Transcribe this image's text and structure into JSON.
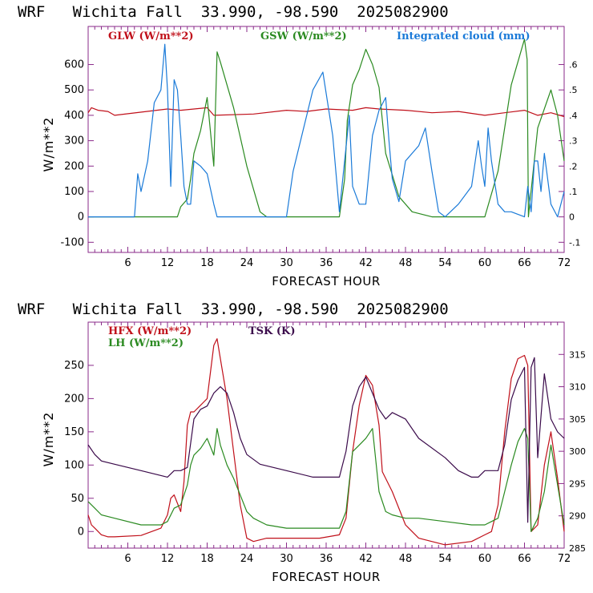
{
  "colors": {
    "glw": "#c0101a",
    "gsw": "#2a8a20",
    "cloud": "#1a7ad8",
    "hfx": "#c0101a",
    "lh": "#2a8a20",
    "tsk": "#3a0a4a",
    "frame": "#8a2a8a"
  },
  "chart_data": [
    {
      "type": "line",
      "title": "WRF   Wichita Fall  33.990, -98.590  2025082900",
      "xlabel": "FORECAST HOUR",
      "ylabel": "W/m**2",
      "xlim": [
        0,
        72
      ],
      "ylim": [
        -140,
        750
      ],
      "xticks": [
        6,
        12,
        18,
        24,
        30,
        36,
        42,
        48,
        54,
        60,
        66,
        72
      ],
      "yticks": [
        -100,
        0,
        100,
        200,
        300,
        400,
        500,
        600
      ],
      "right_axis": {
        "lim": [
          -0.14,
          0.75
        ],
        "ticks": [
          -0.1,
          0,
          0.1,
          0.2,
          0.3,
          0.4,
          0.5,
          0.6
        ],
        "tick_labels": [
          "-.1",
          "0",
          ".1",
          ".2",
          ".3",
          ".4",
          ".5",
          ".6"
        ]
      },
      "series": [
        {
          "name": "GLW (W/m**2)",
          "axis": "left",
          "x": [
            0,
            0.5,
            1.5,
            3,
            4,
            12,
            14,
            18,
            19,
            25,
            30,
            33,
            36,
            40,
            42,
            44,
            48,
            52,
            56,
            60,
            63,
            66,
            68,
            70,
            72
          ],
          "y": [
            410,
            430,
            420,
            415,
            400,
            425,
            420,
            430,
            400,
            405,
            420,
            415,
            425,
            420,
            430,
            425,
            420,
            410,
            415,
            400,
            410,
            420,
            400,
            410,
            395
          ]
        },
        {
          "name": "GSW (W/m**2)",
          "axis": "left",
          "x": [
            0,
            13.5,
            14,
            15,
            15.5,
            16,
            17,
            18,
            19,
            19.5,
            20,
            22,
            24,
            26,
            27,
            30,
            33,
            36,
            38,
            38.8,
            39.2,
            40,
            41,
            42,
            43,
            44,
            45,
            47,
            49,
            52,
            56,
            60,
            62,
            64,
            66,
            66.4,
            66.6,
            68,
            70,
            71,
            72
          ],
          "y": [
            0,
            0,
            40,
            70,
            150,
            250,
            340,
            470,
            200,
            650,
            610,
            430,
            200,
            20,
            0,
            0,
            0,
            0,
            0,
            150,
            380,
            520,
            580,
            660,
            600,
            510,
            250,
            80,
            20,
            0,
            0,
            0,
            180,
            520,
            700,
            620,
            0,
            350,
            500,
            400,
            220
          ]
        },
        {
          "name": "Integrated cloud (mm)",
          "axis": "right",
          "x": [
            0,
            7,
            7.5,
            8,
            9,
            10,
            11,
            11.6,
            12,
            12.5,
            13,
            13.5,
            14,
            14.5,
            15,
            15.5,
            16,
            17,
            18,
            19,
            19.5,
            30,
            31,
            34,
            35.5,
            37,
            38,
            39.5,
            40,
            41,
            42,
            43,
            44,
            45,
            45.5,
            46,
            47,
            48,
            50,
            51,
            52,
            53,
            54,
            56,
            58,
            59,
            59.5,
            60,
            60.5,
            61,
            62,
            63,
            64,
            66,
            66.5,
            67,
            67.5,
            68,
            68.5,
            69,
            70,
            71,
            72
          ],
          "y": [
            0,
            0,
            0.17,
            0.1,
            0.22,
            0.45,
            0.5,
            0.68,
            0.5,
            0.12,
            0.54,
            0.5,
            0.32,
            0.12,
            0.05,
            0.05,
            0.22,
            0.2,
            0.17,
            0.05,
            0,
            0,
            0.18,
            0.5,
            0.57,
            0.32,
            0.02,
            0.4,
            0.12,
            0.05,
            0.05,
            0.32,
            0.42,
            0.47,
            0.3,
            0.15,
            0.06,
            0.22,
            0.28,
            0.35,
            0.18,
            0.02,
            0,
            0.05,
            0.12,
            0.3,
            0.2,
            0.12,
            0.35,
            0.22,
            0.05,
            0.02,
            0.02,
            0,
            0.12,
            0.02,
            0.22,
            0.22,
            0.1,
            0.25,
            0.05,
            0,
            0.1
          ]
        }
      ]
    },
    {
      "type": "line",
      "title": "WRF   Wichita Fall  33.990, -98.590  2025082900",
      "xlabel": "FORECAST HOUR",
      "ylabel": "W/m**2",
      "xlim": [
        0,
        72
      ],
      "ylim": [
        -25,
        315
      ],
      "xticks": [
        6,
        12,
        18,
        24,
        30,
        36,
        42,
        48,
        54,
        60,
        66,
        72
      ],
      "yticks": [
        0,
        50,
        100,
        150,
        200,
        250
      ],
      "right_axis": {
        "lim": [
          285,
          320
        ],
        "ticks": [
          285,
          290,
          295,
          300,
          305,
          310,
          315
        ],
        "tick_labels": [
          "285",
          "290",
          "295",
          "300",
          "305",
          "310",
          "315"
        ]
      },
      "series": [
        {
          "name": "HFX (W/m**2)",
          "axis": "left",
          "x": [
            0,
            0.5,
            1,
            2,
            3,
            4,
            8,
            11,
            12,
            12.5,
            13,
            14,
            14.5,
            15,
            15.5,
            16,
            17,
            18,
            19,
            19.5,
            20,
            21,
            22,
            23,
            24,
            25,
            27,
            30,
            35,
            38,
            39,
            40,
            41,
            42,
            43,
            44,
            44.5,
            46,
            48,
            50,
            54,
            58,
            60,
            61,
            62,
            63,
            64,
            65,
            66,
            66.5,
            67,
            68,
            69,
            70,
            71,
            72
          ],
          "y": [
            25,
            10,
            5,
            -5,
            -8,
            -8,
            -6,
            5,
            25,
            50,
            55,
            30,
            75,
            160,
            180,
            180,
            190,
            200,
            280,
            290,
            260,
            200,
            120,
            40,
            -10,
            -15,
            -10,
            -10,
            -10,
            -5,
            20,
            120,
            190,
            235,
            220,
            160,
            90,
            60,
            10,
            -10,
            -20,
            -15,
            -5,
            0,
            40,
            150,
            230,
            260,
            265,
            250,
            0,
            10,
            100,
            150,
            80,
            0
          ]
        },
        {
          "name": "LH (W/m**2)",
          "axis": "left",
          "x": [
            0,
            1,
            2,
            4,
            8,
            11,
            12,
            13,
            14,
            15,
            15.5,
            16,
            17,
            18,
            19,
            19.5,
            20,
            21,
            22,
            24,
            25,
            27,
            30,
            35,
            38,
            39,
            40,
            41,
            42,
            43,
            44,
            45,
            46,
            48,
            50,
            54,
            58,
            60,
            61,
            62,
            63,
            64,
            65,
            66,
            66.5,
            67,
            68,
            69,
            70,
            71,
            72
          ],
          "y": [
            45,
            35,
            25,
            20,
            10,
            10,
            15,
            35,
            40,
            70,
            100,
            115,
            125,
            140,
            115,
            155,
            130,
            100,
            80,
            30,
            20,
            10,
            5,
            5,
            5,
            30,
            120,
            130,
            140,
            155,
            60,
            30,
            25,
            20,
            20,
            15,
            10,
            10,
            15,
            20,
            60,
            100,
            135,
            155,
            140,
            0,
            20,
            60,
            130,
            70,
            10
          ]
        },
        {
          "name": "TSK (K)",
          "axis": "right",
          "x": [
            0,
            1,
            2,
            4,
            8,
            12,
            13,
            14,
            15,
            16,
            17,
            18,
            19,
            20,
            21,
            22,
            23,
            24,
            26,
            30,
            34,
            36,
            38,
            39,
            40,
            41,
            42,
            43,
            44,
            45,
            46,
            48,
            50,
            54,
            56,
            58,
            59,
            60,
            61,
            62,
            63,
            64,
            65,
            66,
            66.5,
            67,
            67.5,
            68,
            69,
            70,
            71,
            72
          ],
          "y": [
            301,
            299.5,
            298.5,
            298,
            297,
            296,
            297,
            297,
            297.5,
            305,
            306.5,
            307,
            309,
            310,
            309,
            306,
            302,
            299.5,
            298,
            297,
            296,
            296,
            296,
            300,
            307,
            310,
            311.5,
            309,
            306.5,
            305,
            306,
            305,
            302,
            299,
            297,
            296,
            296,
            297,
            297,
            297,
            301,
            308,
            311,
            313,
            289,
            313,
            314.5,
            299,
            312,
            305,
            303,
            302
          ]
        }
      ]
    }
  ]
}
